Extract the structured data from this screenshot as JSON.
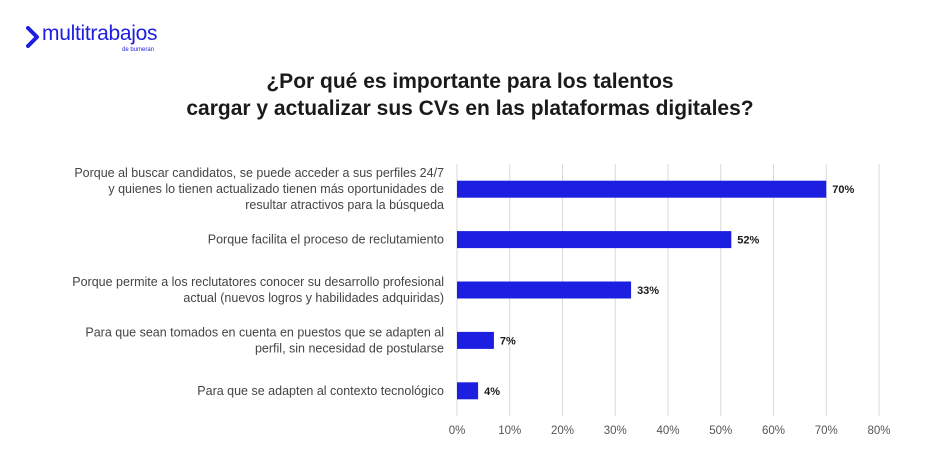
{
  "brand": {
    "name": "multitrabajos",
    "tagline": "de bumeran",
    "color": "#1c1ee0"
  },
  "chart_data": {
    "type": "bar",
    "orientation": "horizontal",
    "title_lines": [
      "¿Por qué es importante para los talentos",
      "cargar y actualizar sus CVs en las plataformas digitales?"
    ],
    "categories": [
      [
        "Porque al buscar candidatos, se puede acceder a sus perfiles 24/7",
        "y quienes lo tienen actualizado tienen más oportunidades de",
        "resultar atractivos para la búsqueda"
      ],
      [
        "Porque facilita el proceso de reclutamiento"
      ],
      [
        "Porque permite a los reclutatores conocer su desarrollo profesional",
        "actual (nuevos logros y habilidades adquiridas)"
      ],
      [
        "Para que sean tomados en cuenta en puestos que se adapten al",
        "perfil, sin necesidad de postularse"
      ],
      [
        "Para que se adapten al contexto tecnológico"
      ]
    ],
    "values": [
      70,
      52,
      33,
      7,
      4
    ],
    "value_labels": [
      "70%",
      "52%",
      "33%",
      "7%",
      "4%"
    ],
    "x_ticks": [
      "0%",
      "10%",
      "20%",
      "30%",
      "40%",
      "50%",
      "60%",
      "70%",
      "80%"
    ],
    "xlim": [
      0,
      80
    ],
    "grid": true,
    "bar_color": "#1c1ee0",
    "grid_color": "#d9d9d9"
  }
}
